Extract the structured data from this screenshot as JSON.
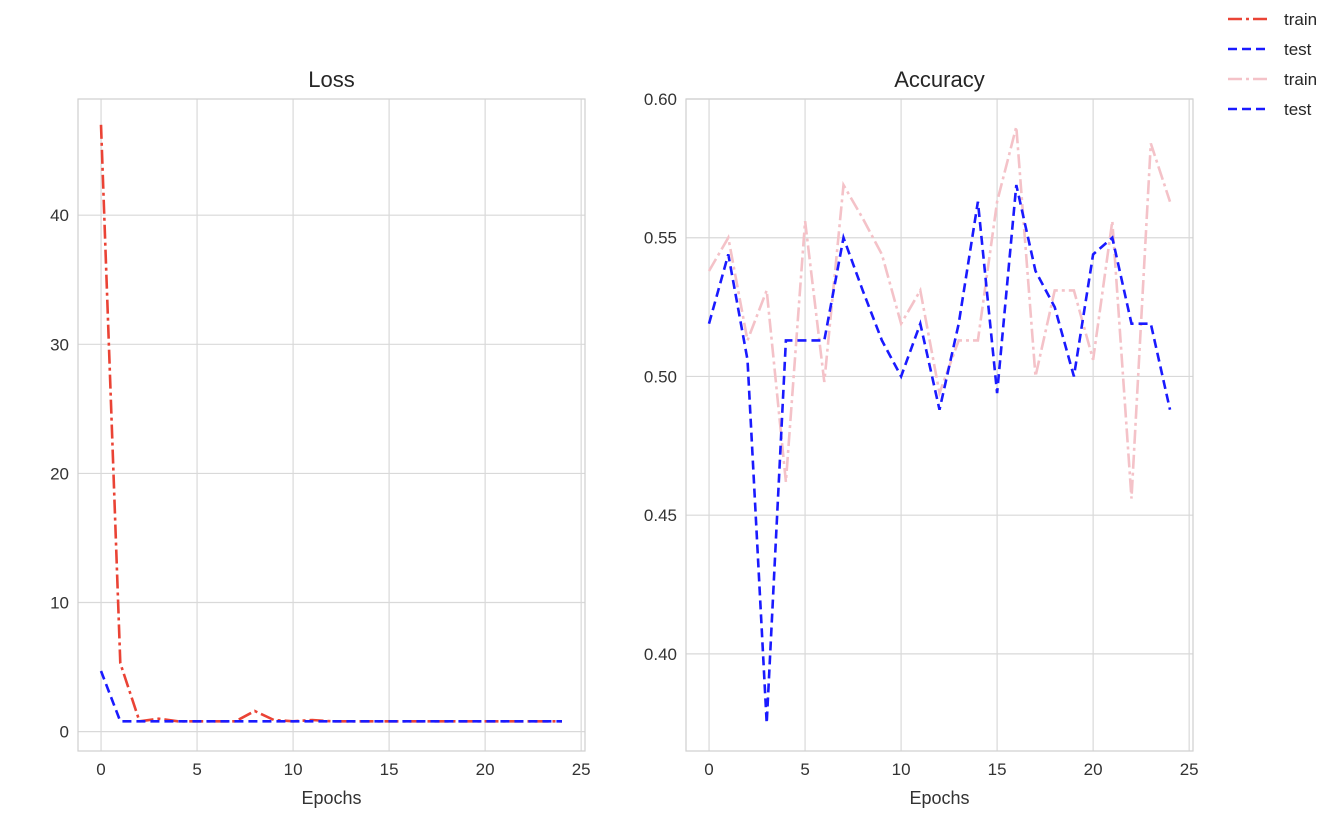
{
  "legend": {
    "placement": "figure-top-right",
    "entries": [
      {
        "label": "train",
        "color": "#ea4335",
        "dash": "dashdot"
      },
      {
        "label": "test",
        "color": "#1a1aff",
        "dash": "dashed"
      },
      {
        "label": "train",
        "color": "#f4c2c8",
        "dash": "dashdot"
      },
      {
        "label": "test",
        "color": "#1a1aff",
        "dash": "dashed"
      }
    ]
  },
  "chart_data": [
    {
      "type": "line",
      "title": "Loss",
      "xlabel": "Epochs",
      "ylabel": "",
      "xlim": [
        -1.2,
        25.2
      ],
      "ylim": [
        -1.5,
        49
      ],
      "xticks": [
        0,
        5,
        10,
        15,
        20,
        25
      ],
      "yticks": [
        0,
        10,
        20,
        30,
        40
      ],
      "xtick_labels": [
        "0",
        "5",
        "10",
        "15",
        "20",
        "25"
      ],
      "ytick_labels": [
        "0",
        "10",
        "20",
        "30",
        "40"
      ],
      "grid": true,
      "x": [
        0,
        1,
        2,
        3,
        4,
        5,
        6,
        7,
        8,
        9,
        10,
        11,
        12,
        13,
        14,
        15,
        16,
        17,
        18,
        19,
        20,
        21,
        22,
        23,
        24
      ],
      "series": [
        {
          "name": "train",
          "color": "#ea4335",
          "dash": "dashdot",
          "values": [
            47.0,
            5.3,
            0.8,
            1.0,
            0.8,
            0.8,
            0.8,
            0.8,
            1.6,
            0.9,
            0.8,
            0.9,
            0.8,
            0.8,
            0.8,
            0.8,
            0.8,
            0.8,
            0.8,
            0.8,
            0.8,
            0.8,
            0.8,
            0.8,
            0.8
          ]
        },
        {
          "name": "test",
          "color": "#1a1aff",
          "dash": "dashed",
          "values": [
            4.7,
            0.8,
            0.8,
            0.8,
            0.8,
            0.8,
            0.8,
            0.8,
            0.8,
            0.8,
            0.8,
            0.8,
            0.8,
            0.8,
            0.8,
            0.8,
            0.8,
            0.8,
            0.8,
            0.8,
            0.8,
            0.8,
            0.8,
            0.8,
            0.8
          ]
        }
      ]
    },
    {
      "type": "line",
      "title": "Accuracy",
      "xlabel": "Epochs",
      "ylabel": "",
      "xlim": [
        -1.2,
        25.2
      ],
      "ylim": [
        0.365,
        0.6
      ],
      "xticks": [
        0,
        5,
        10,
        15,
        20,
        25
      ],
      "yticks": [
        0.4,
        0.45,
        0.5,
        0.55,
        0.6
      ],
      "xtick_labels": [
        "0",
        "5",
        "10",
        "15",
        "20",
        "25"
      ],
      "ytick_labels": [
        "0.40",
        "0.45",
        "0.50",
        "0.55",
        "0.60"
      ],
      "grid": true,
      "x": [
        0,
        1,
        2,
        3,
        4,
        5,
        6,
        7,
        8,
        9,
        10,
        11,
        12,
        13,
        14,
        15,
        16,
        17,
        18,
        19,
        20,
        21,
        22,
        23,
        24
      ],
      "series": [
        {
          "name": "train",
          "color": "#f4c2c8",
          "dash": "dashdot",
          "values": [
            0.538,
            0.55,
            0.513,
            0.531,
            0.462,
            0.556,
            0.498,
            0.569,
            0.557,
            0.544,
            0.519,
            0.531,
            0.494,
            0.513,
            0.513,
            0.563,
            0.59,
            0.5,
            0.531,
            0.531,
            0.506,
            0.556,
            0.456,
            0.584,
            0.563
          ]
        },
        {
          "name": "test",
          "color": "#1a1aff",
          "dash": "dashed",
          "values": [
            0.519,
            0.544,
            0.506,
            0.375,
            0.513,
            0.513,
            0.513,
            0.55,
            0.531,
            0.513,
            0.5,
            0.519,
            0.488,
            0.519,
            0.563,
            0.494,
            0.569,
            0.538,
            0.525,
            0.5,
            0.544,
            0.55,
            0.519,
            0.519,
            0.488
          ]
        }
      ]
    }
  ]
}
